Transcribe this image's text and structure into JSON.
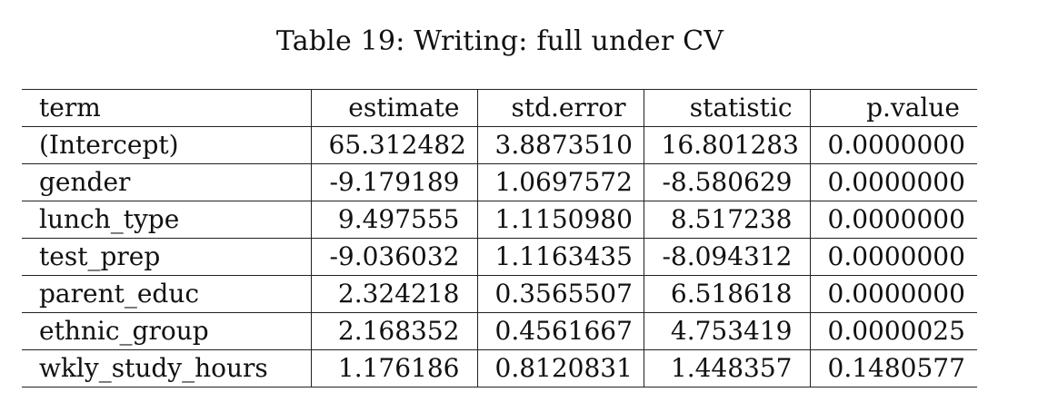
{
  "caption": "Table 19: Writing: full under CV",
  "table": {
    "columns": [
      "term",
      "estimate",
      "std.error",
      "statistic",
      "p.value"
    ],
    "rows": [
      {
        "term": "(Intercept)",
        "estimate": "65.312482",
        "std_error": "3.8873510",
        "statistic": "16.801283",
        "p_value": "0.0000000"
      },
      {
        "term": "gender",
        "estimate": "-9.179189",
        "std_error": "1.0697572",
        "statistic": "-8.580629",
        "p_value": "0.0000000"
      },
      {
        "term": "lunch_type",
        "estimate": "9.497555",
        "std_error": "1.1150980",
        "statistic": "8.517238",
        "p_value": "0.0000000"
      },
      {
        "term": "test_prep",
        "estimate": "-9.036032",
        "std_error": "1.1163435",
        "statistic": "-8.094312",
        "p_value": "0.0000000"
      },
      {
        "term": "parent_educ",
        "estimate": "2.324218",
        "std_error": "0.3565507",
        "statistic": "6.518618",
        "p_value": "0.0000000"
      },
      {
        "term": "ethnic_group",
        "estimate": "2.168352",
        "std_error": "0.4561667",
        "statistic": "4.753419",
        "p_value": "0.0000025"
      },
      {
        "term": "wkly_study_hours",
        "estimate": "1.176186",
        "std_error": "0.8120831",
        "statistic": "1.448357",
        "p_value": "0.1480577"
      }
    ]
  }
}
